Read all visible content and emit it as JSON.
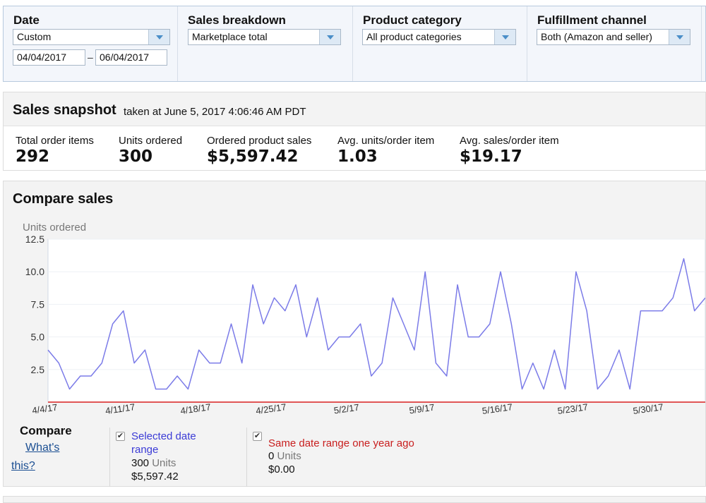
{
  "filters": {
    "date": {
      "label": "Date",
      "preset": "Custom",
      "from": "04/04/2017",
      "separator": "–",
      "to": "06/04/2017"
    },
    "sales_breakdown": {
      "label": "Sales breakdown",
      "value": "Marketplace total"
    },
    "product_category": {
      "label": "Product category",
      "value": "All product categories"
    },
    "fulfillment_channel": {
      "label": "Fulfillment channel",
      "value": "Both (Amazon and seller)"
    }
  },
  "snapshot": {
    "title": "Sales snapshot",
    "subtitle": "taken at June 5, 2017 4:06:46 AM PDT",
    "metrics": [
      {
        "label": "Total order items",
        "value": "292"
      },
      {
        "label": "Units ordered",
        "value": "300"
      },
      {
        "label": "Ordered product sales",
        "value": "$5,597.42"
      },
      {
        "label": "Avg. units/order item",
        "value": "1.03"
      },
      {
        "label": "Avg. sales/order item",
        "value": "$19.17"
      }
    ]
  },
  "compare": {
    "title": "Compare sales",
    "compare_label": "Compare",
    "whats_this_1": "What's",
    "whats_this_2": "this?",
    "selected": {
      "name_line1": "Selected date",
      "name_line2": "range",
      "units_value": "300",
      "units_label": "Units",
      "sales": "$5,597.42",
      "color": "#3b3bd6",
      "checked": true
    },
    "year_ago": {
      "name": "Same date range one year ago",
      "units_value": "0",
      "units_label": "Units",
      "sales": "$0.00",
      "color": "#c81e1e",
      "checked": true
    }
  },
  "chart_data": {
    "type": "line",
    "ylabel": "Units ordered",
    "ylim": [
      0,
      12.5
    ],
    "yticks": [
      "12.5",
      "10.0",
      "7.5",
      "5.0",
      "2.5"
    ],
    "ytick_values": [
      12.5,
      10.0,
      7.5,
      5.0,
      2.5
    ],
    "xtick_labels": [
      "4/4/17",
      "4/11/17",
      "4/18/17",
      "4/25/17",
      "5/2/17",
      "5/9/17",
      "5/16/17",
      "5/23/17",
      "5/30/17"
    ],
    "grid": true,
    "series": [
      {
        "name": "Selected date range",
        "color": "#7b7be8",
        "values": [
          4,
          3,
          1,
          2,
          2,
          3,
          6,
          7,
          3,
          4,
          1,
          1,
          2,
          1,
          4,
          3,
          3,
          6,
          3,
          9,
          6,
          8,
          7,
          9,
          5,
          8,
          4,
          5,
          5,
          6,
          2,
          3,
          8,
          6,
          4,
          10,
          3,
          2,
          9,
          5,
          5,
          6,
          10,
          6,
          1,
          3,
          1,
          4,
          1,
          10,
          7,
          1,
          2,
          4,
          1,
          7,
          7,
          7,
          8,
          11,
          7,
          8
        ]
      },
      {
        "name": "Same date range one year ago",
        "color": "#e05555",
        "values": [
          0,
          0,
          0,
          0,
          0,
          0,
          0,
          0,
          0,
          0,
          0,
          0,
          0,
          0,
          0,
          0,
          0,
          0,
          0,
          0,
          0,
          0,
          0,
          0,
          0,
          0,
          0,
          0,
          0,
          0,
          0,
          0,
          0,
          0,
          0,
          0,
          0,
          0,
          0,
          0,
          0,
          0,
          0,
          0,
          0,
          0,
          0,
          0,
          0,
          0,
          0,
          0,
          0,
          0,
          0,
          0,
          0,
          0,
          0,
          0,
          0,
          0
        ]
      }
    ]
  }
}
